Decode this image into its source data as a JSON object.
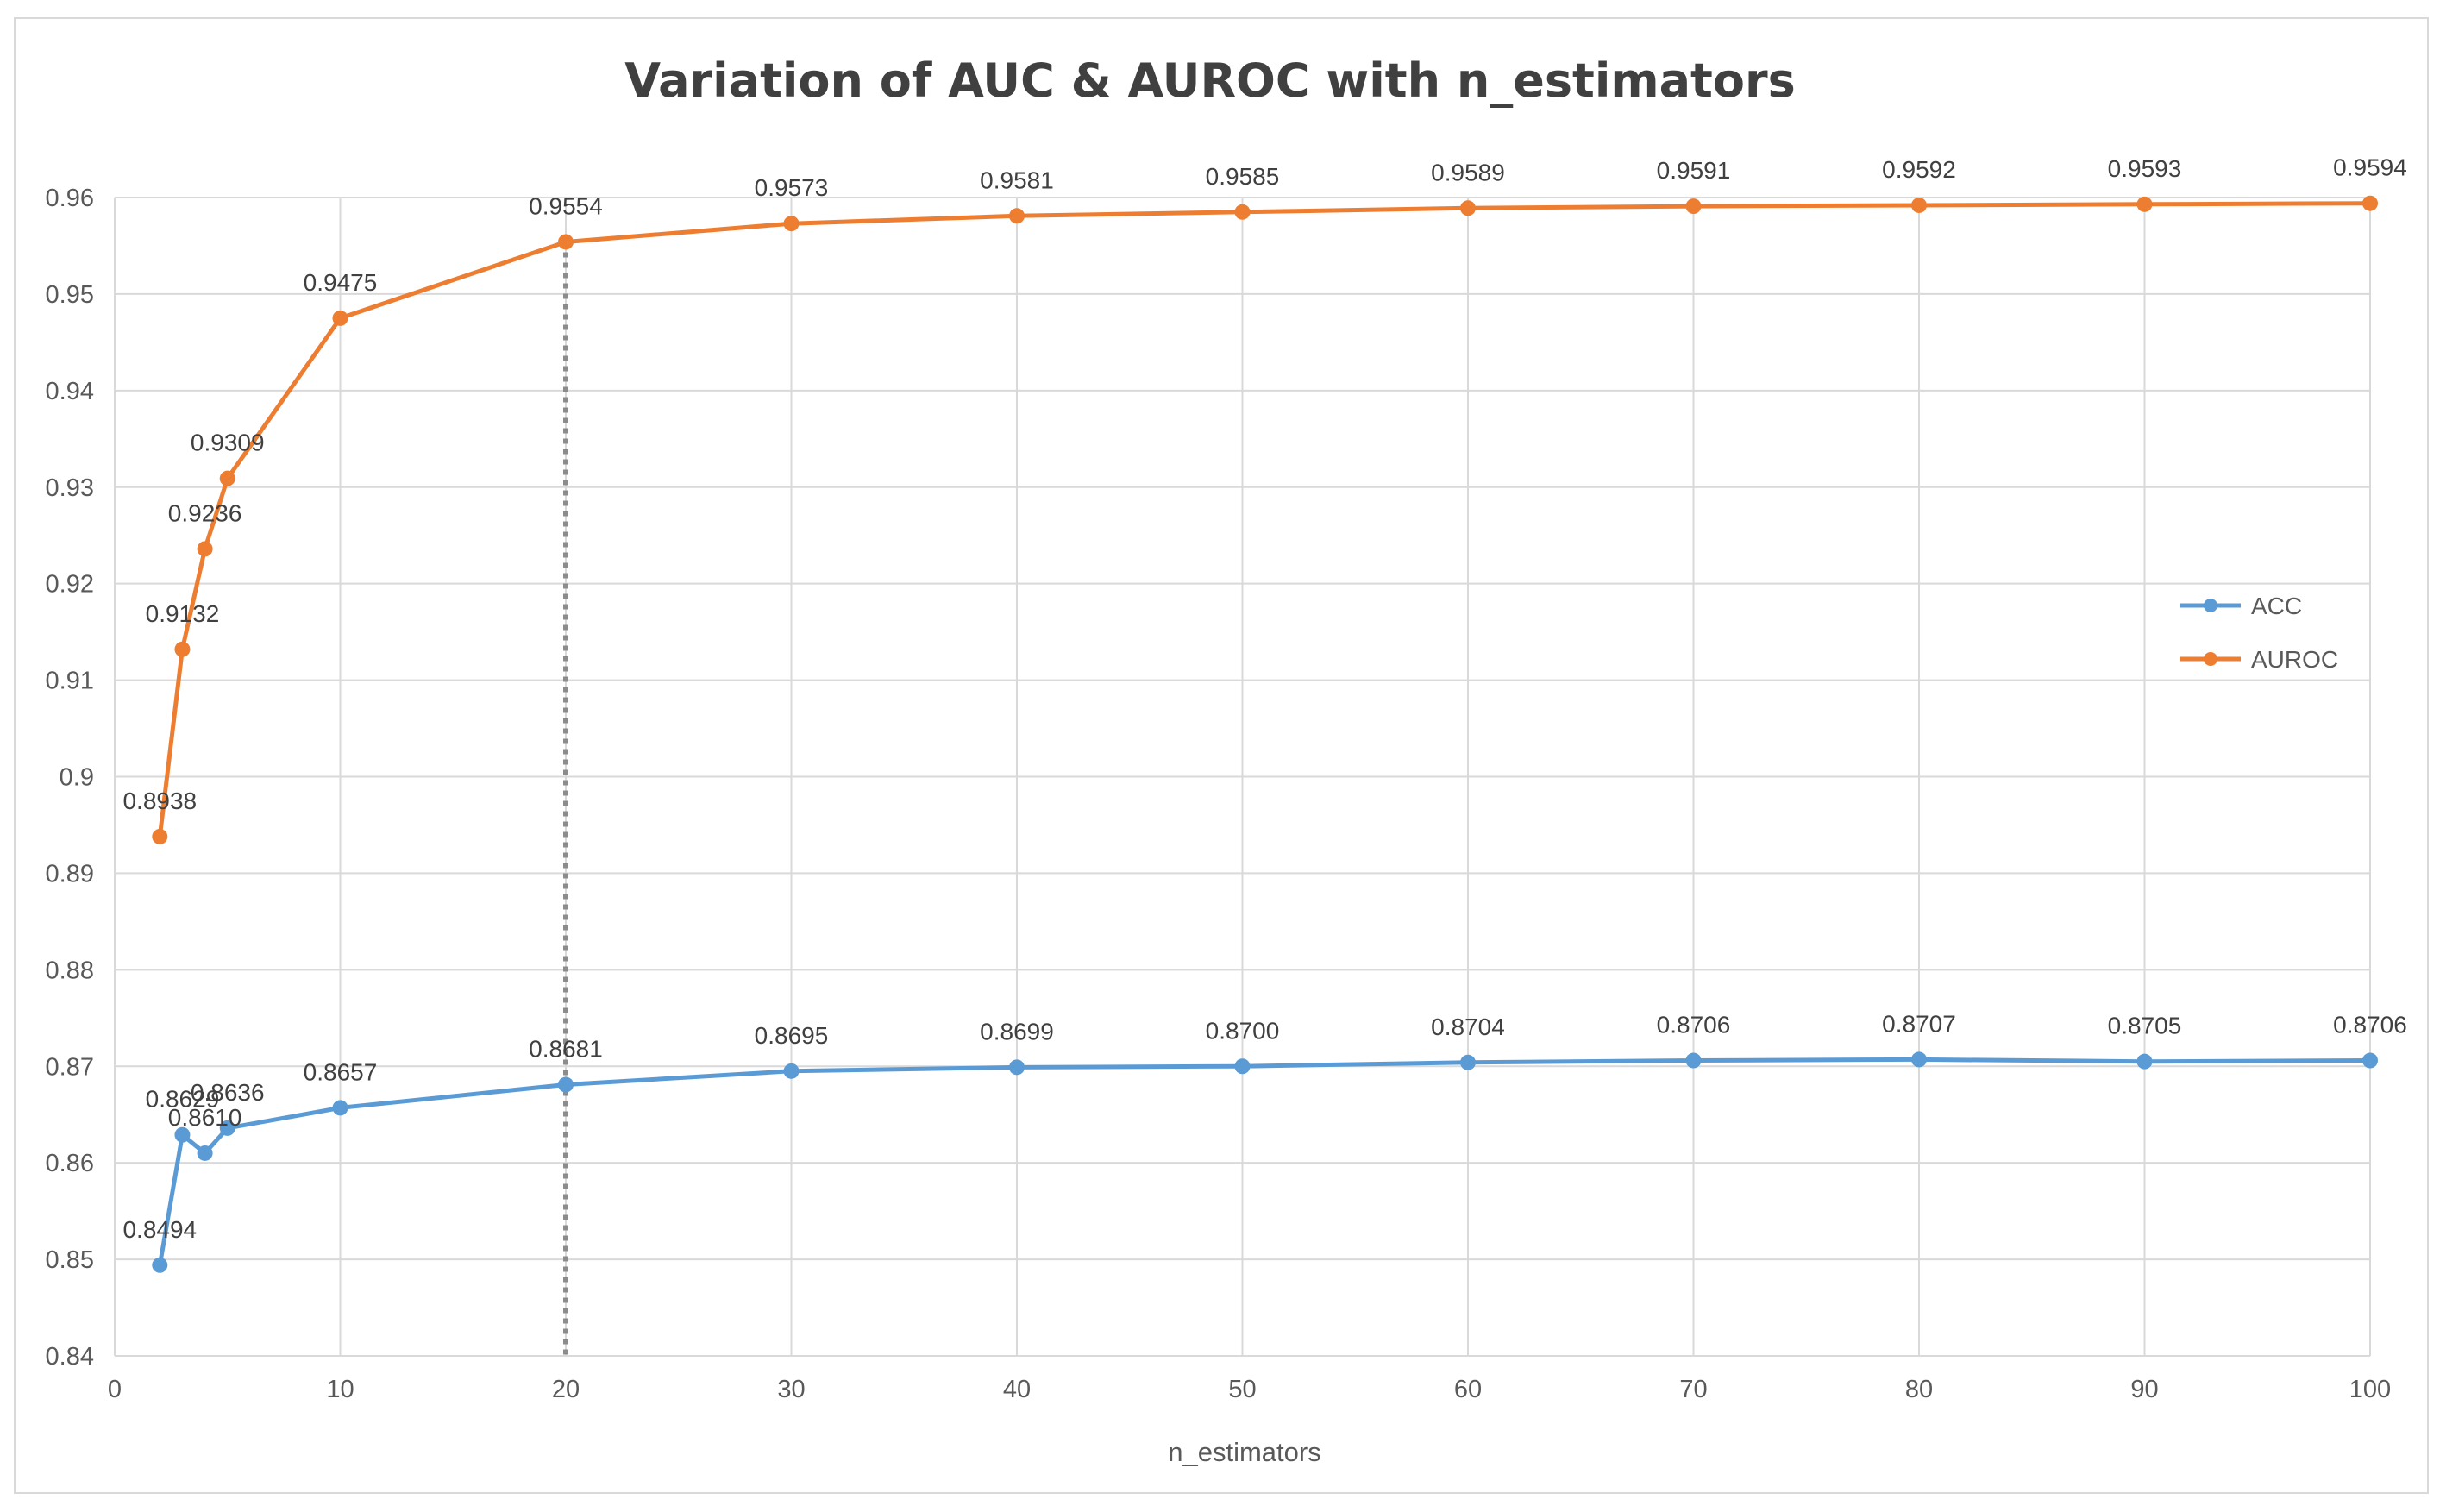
{
  "chart_data": {
    "type": "line",
    "title": "Variation of AUC & AUROC with n_estimators",
    "xlabel": "n_estimators",
    "ylabel": "",
    "xlim": [
      0,
      100
    ],
    "ylim": [
      0.84,
      0.96
    ],
    "x_ticks": [
      "0",
      "10",
      "20",
      "30",
      "40",
      "50",
      "60",
      "70",
      "80",
      "90",
      "100"
    ],
    "y_ticks": [
      "0.84",
      "0.85",
      "0.86",
      "0.87",
      "0.88",
      "0.89",
      "0.9",
      "0.91",
      "0.92",
      "0.93",
      "0.94",
      "0.95",
      "0.96"
    ],
    "grid": true,
    "legend_position": "right",
    "reference_line": {
      "x": 20,
      "style": "dotted"
    },
    "x": [
      2,
      3,
      4,
      5,
      10,
      20,
      30,
      40,
      50,
      60,
      70,
      80,
      90,
      100
    ],
    "series": [
      {
        "name": "ACC",
        "color": "#5b9bd5",
        "values": [
          0.8494,
          0.8629,
          0.861,
          0.8636,
          0.8657,
          0.8681,
          0.8695,
          0.8699,
          0.87,
          0.8704,
          0.8706,
          0.8707,
          0.8705,
          0.8706
        ],
        "labels": [
          "0.8494",
          "0.8629",
          "0.8610",
          "0.8636",
          "0.8657",
          "0.8681",
          "0.8695",
          "0.8699",
          "0.8700",
          "0.8704",
          "0.8706",
          "0.8707",
          "0.8705",
          "0.8706"
        ]
      },
      {
        "name": "AUROC",
        "color": "#ed7d31",
        "values": [
          0.8938,
          0.9132,
          0.9236,
          0.9309,
          0.9475,
          0.9554,
          0.9573,
          0.9581,
          0.9585,
          0.9589,
          0.9591,
          0.9592,
          0.9593,
          0.9594
        ],
        "labels": [
          "0.8938",
          "0.9132",
          "0.9236",
          "0.9309",
          "0.9475",
          "0.9554",
          "0.9573",
          "0.9581",
          "0.9585",
          "0.9589",
          "0.9591",
          "0.9592",
          "0.9593",
          "0.9594"
        ]
      }
    ]
  }
}
